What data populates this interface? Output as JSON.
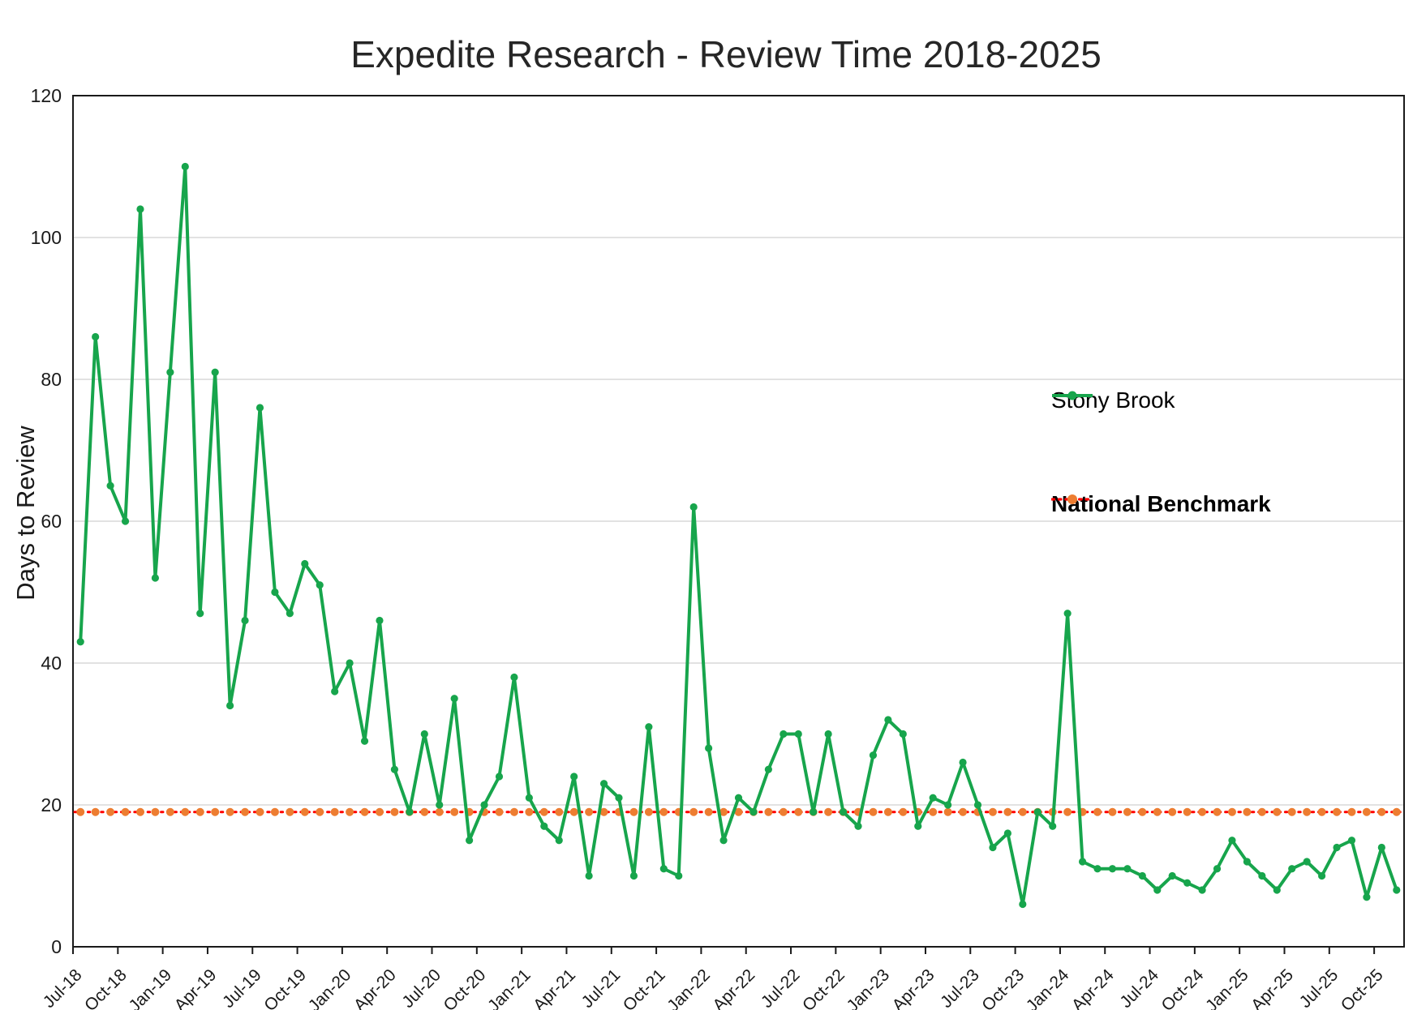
{
  "chart_data": {
    "type": "line",
    "title": "Expedite Research - Review Time 2018-2025",
    "ylabel": "Days to Review",
    "xlabel": "",
    "ylim": [
      0,
      120
    ],
    "y_ticks": [
      0,
      20,
      40,
      60,
      80,
      100,
      120
    ],
    "x_tick_labels": [
      "Jul-18",
      "Oct-18",
      "Jan-19",
      "Apr-19",
      "Jul-19",
      "Oct-19",
      "Jan-20",
      "Apr-20",
      "Jul-20",
      "Oct-20",
      "Jan-21",
      "Apr-21",
      "Jul-21",
      "Oct-21",
      "Jan-22",
      "Apr-22",
      "Jul-22",
      "Oct-22",
      "Jan-23",
      "Apr-23",
      "Jul-23",
      "Oct-23",
      "Jan-24",
      "Apr-24",
      "Jul-24",
      "Oct-24",
      "Jan-25",
      "Apr-25",
      "Jul-25",
      "Oct-25"
    ],
    "x_tick_every": 3,
    "categories": [
      "Jul-18",
      "Aug-18",
      "Sep-18",
      "Oct-18",
      "Nov-18",
      "Dec-18",
      "Jan-19",
      "Feb-19",
      "Mar-19",
      "Apr-19",
      "May-19",
      "Jun-19",
      "Jul-19",
      "Aug-19",
      "Sep-19",
      "Oct-19",
      "Nov-19",
      "Dec-19",
      "Jan-20",
      "Feb-20",
      "Mar-20",
      "Apr-20",
      "May-20",
      "Jun-20",
      "Jul-20",
      "Aug-20",
      "Sep-20",
      "Oct-20",
      "Nov-20",
      "Dec-20",
      "Jan-21",
      "Feb-21",
      "Mar-21",
      "Apr-21",
      "May-21",
      "Jun-21",
      "Jul-21",
      "Aug-21",
      "Sep-21",
      "Oct-21",
      "Nov-21",
      "Dec-21",
      "Jan-22",
      "Feb-22",
      "Mar-22",
      "Apr-22",
      "May-22",
      "Jun-22",
      "Jul-22",
      "Aug-22",
      "Sep-22",
      "Oct-22",
      "Nov-22",
      "Dec-22",
      "Jan-23",
      "Feb-23",
      "Mar-23",
      "Apr-23",
      "May-23",
      "Jun-23",
      "Jul-23",
      "Aug-23",
      "Sep-23",
      "Oct-23",
      "Nov-23",
      "Dec-23",
      "Jan-24",
      "Feb-24",
      "Mar-24",
      "Apr-24",
      "May-24",
      "Jun-24",
      "Jul-24",
      "Aug-24",
      "Sep-24",
      "Oct-24",
      "Nov-24",
      "Dec-24",
      "Jan-25",
      "Feb-25",
      "Mar-25",
      "Apr-25",
      "May-25",
      "Jun-25",
      "Jul-25",
      "Aug-25",
      "Sep-25",
      "Oct-25",
      "Nov-25"
    ],
    "series": [
      {
        "name": "Stony Brook",
        "color": "#17A54C",
        "style": "solid-with-markers",
        "values": [
          43,
          86,
          65,
          60,
          104,
          52,
          81,
          110,
          47,
          81,
          34,
          46,
          76,
          50,
          47,
          54,
          51,
          36,
          40,
          29,
          46,
          25,
          19,
          30,
          20,
          35,
          15,
          20,
          24,
          38,
          21,
          17,
          15,
          24,
          10,
          23,
          21,
          10,
          31,
          11,
          10,
          62,
          28,
          15,
          21,
          19,
          25,
          30,
          30,
          19,
          30,
          19,
          17,
          27,
          32,
          30,
          17,
          21,
          20,
          26,
          20,
          14,
          16,
          6,
          19,
          17,
          47,
          12,
          11,
          11,
          11,
          10,
          8,
          10,
          9,
          8,
          11,
          15,
          12,
          10,
          8,
          11,
          12,
          10,
          14,
          15,
          7,
          14,
          8
        ]
      },
      {
        "name": "National Benchmark",
        "line_color": "#FF0000",
        "marker_color": "#ED7D31",
        "style": "dotted-with-markers",
        "constant_value": 19
      }
    ],
    "legend_position": "right-inside",
    "grid": "horizontal",
    "gridline_color": "#D9D9D9",
    "axis_color": "#1a1a1a"
  },
  "legend": {
    "stony_brook_label": "Stony Brook",
    "national_benchmark_label": "National Benchmark"
  }
}
